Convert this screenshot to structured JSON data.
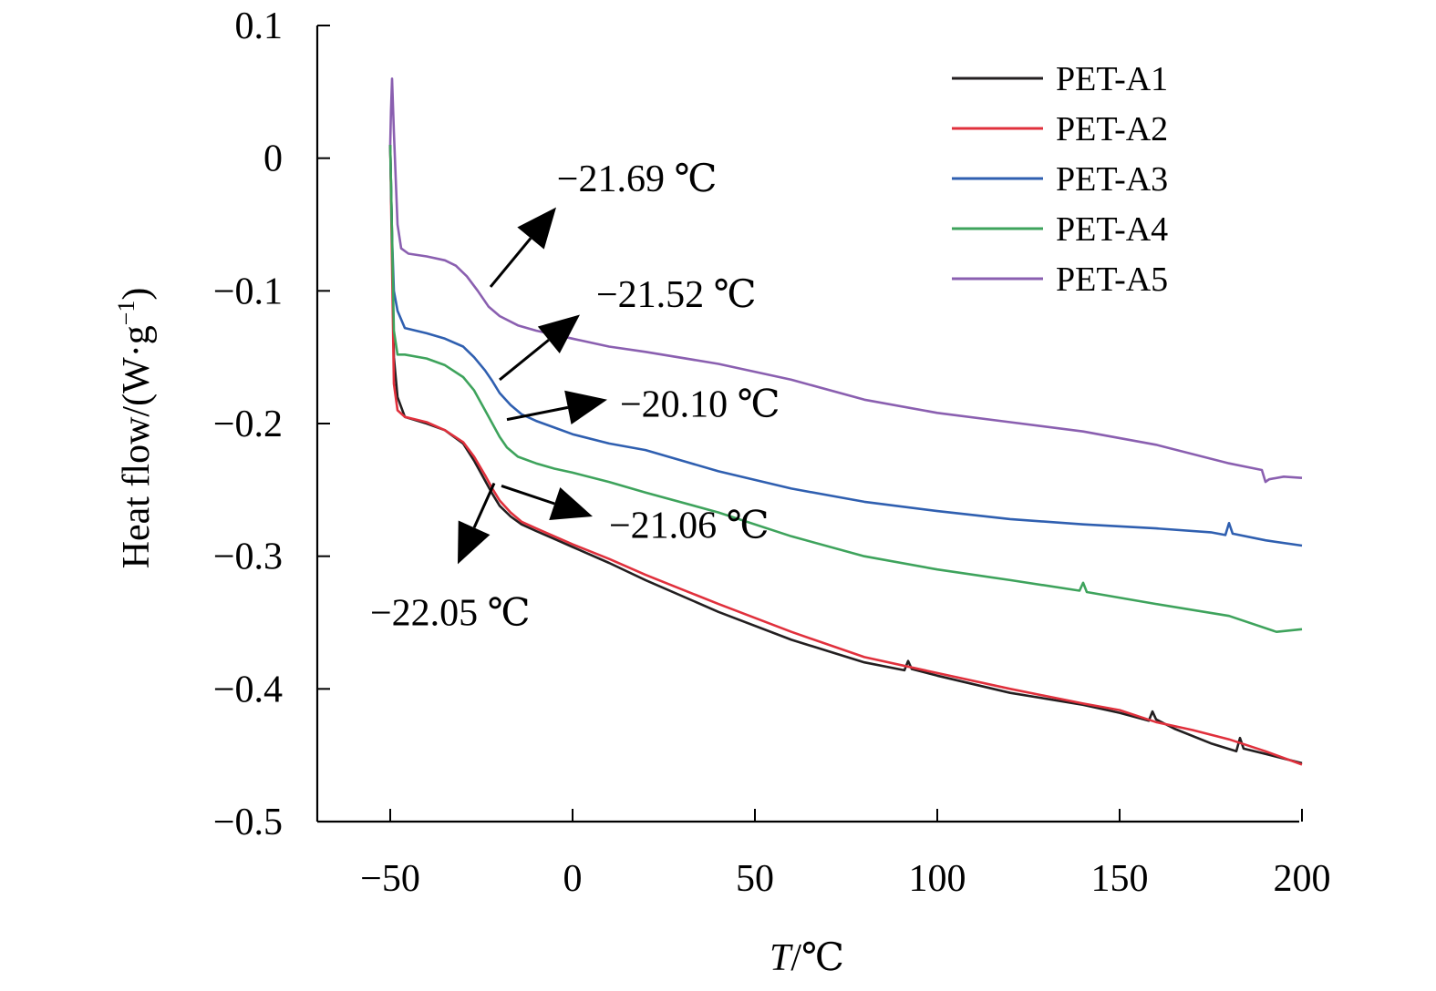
{
  "chart_data": {
    "type": "line",
    "title": "",
    "xlabel": {
      "italic": "T",
      "rest": "/℃"
    },
    "ylabel": {
      "main": "Heat flow/(W·g",
      "sup": "−1",
      "close": ")"
    },
    "xlim": [
      -70,
      200
    ],
    "ylim": [
      -0.5,
      0.1
    ],
    "xticks": [
      -50,
      0,
      50,
      100,
      150,
      200
    ],
    "xtick_labels": [
      "−50",
      "0",
      "50",
      "100",
      "150",
      "200"
    ],
    "yticks": [
      0.1,
      0,
      -0.1,
      -0.2,
      -0.3,
      -0.4,
      -0.5
    ],
    "ytick_labels": [
      "0.1",
      "0",
      "−0.1",
      "−0.2",
      "−0.3",
      "−0.4",
      "−0.5"
    ],
    "legend_position": "top-right",
    "series": [
      {
        "name": "PET-A1",
        "color": "#231f20",
        "x": [
          -50,
          -49.5,
          -49,
          -48,
          -46,
          -40,
          -35,
          -30,
          -27,
          -24,
          -22,
          -20,
          -17,
          -14,
          -10,
          -5,
          0,
          10,
          20,
          40,
          60,
          80,
          91,
          92,
          93,
          100,
          120,
          140,
          150,
          158,
          159,
          160,
          165,
          175,
          182,
          183,
          184,
          190,
          200
        ],
        "y": [
          0.01,
          -0.06,
          -0.15,
          -0.18,
          -0.195,
          -0.2,
          -0.205,
          -0.215,
          -0.228,
          -0.243,
          -0.253,
          -0.262,
          -0.27,
          -0.276,
          -0.281,
          -0.287,
          -0.293,
          -0.305,
          -0.318,
          -0.342,
          -0.363,
          -0.38,
          -0.386,
          -0.379,
          -0.385,
          -0.39,
          -0.403,
          -0.412,
          -0.418,
          -0.424,
          -0.417,
          -0.423,
          -0.43,
          -0.441,
          -0.447,
          -0.437,
          -0.445,
          -0.449,
          -0.456
        ]
      },
      {
        "name": "PET-A2",
        "color": "#e0303c",
        "x": [
          -50,
          -49.5,
          -49,
          -48,
          -46,
          -40,
          -35,
          -30,
          -27,
          -24,
          -22,
          -20,
          -17,
          -14,
          -10,
          -5,
          0,
          10,
          20,
          40,
          60,
          80,
          100,
          120,
          140,
          150,
          160,
          170,
          180,
          190,
          200
        ],
        "y": [
          0.01,
          -0.08,
          -0.17,
          -0.19,
          -0.195,
          -0.199,
          -0.205,
          -0.214,
          -0.225,
          -0.239,
          -0.249,
          -0.258,
          -0.267,
          -0.274,
          -0.279,
          -0.285,
          -0.291,
          -0.302,
          -0.314,
          -0.336,
          -0.357,
          -0.376,
          -0.388,
          -0.4,
          -0.411,
          -0.416,
          -0.425,
          -0.431,
          -0.438,
          -0.447,
          -0.457
        ]
      },
      {
        "name": "PET-A3",
        "color": "#2f5fb0",
        "x": [
          -50,
          -49.5,
          -49,
          -48,
          -46,
          -40,
          -35,
          -30,
          -27,
          -24,
          -22,
          -20,
          -17,
          -14,
          -10,
          -5,
          0,
          10,
          20,
          40,
          60,
          80,
          100,
          120,
          140,
          160,
          175,
          179,
          180,
          181,
          190,
          200
        ],
        "y": [
          0.01,
          -0.06,
          -0.1,
          -0.115,
          -0.128,
          -0.132,
          -0.136,
          -0.142,
          -0.15,
          -0.16,
          -0.168,
          -0.177,
          -0.186,
          -0.193,
          -0.198,
          -0.203,
          -0.208,
          -0.215,
          -0.22,
          -0.236,
          -0.249,
          -0.259,
          -0.266,
          -0.272,
          -0.276,
          -0.279,
          -0.282,
          -0.284,
          -0.275,
          -0.283,
          -0.288,
          -0.292
        ]
      },
      {
        "name": "PET-A4",
        "color": "#3ea35c",
        "x": [
          -50,
          -49.5,
          -49,
          -48,
          -46,
          -40,
          -35,
          -30,
          -27,
          -24,
          -22,
          -20,
          -18,
          -15,
          -10,
          -5,
          0,
          10,
          20,
          40,
          60,
          80,
          100,
          120,
          139,
          140,
          141,
          160,
          180,
          193,
          200
        ],
        "y": [
          0.01,
          -0.06,
          -0.13,
          -0.148,
          -0.148,
          -0.151,
          -0.156,
          -0.165,
          -0.175,
          -0.19,
          -0.2,
          -0.21,
          -0.218,
          -0.225,
          -0.23,
          -0.234,
          -0.237,
          -0.244,
          -0.252,
          -0.267,
          -0.285,
          -0.3,
          -0.31,
          -0.318,
          -0.326,
          -0.32,
          -0.327,
          -0.336,
          -0.345,
          -0.357,
          -0.355
        ]
      },
      {
        "name": "PET-A5",
        "color": "#8a5fb0",
        "x": [
          -50,
          -49.8,
          -49.5,
          -49,
          -48,
          -47,
          -45,
          -40,
          -35,
          -32,
          -29,
          -26,
          -23,
          -20,
          -15,
          -10,
          -5,
          0,
          10,
          20,
          40,
          60,
          80,
          100,
          120,
          140,
          160,
          180,
          189,
          190,
          191,
          195,
          200
        ],
        "y": [
          0.01,
          0.035,
          0.06,
          0.02,
          -0.05,
          -0.068,
          -0.072,
          -0.074,
          -0.077,
          -0.081,
          -0.089,
          -0.1,
          -0.112,
          -0.119,
          -0.126,
          -0.13,
          -0.133,
          -0.136,
          -0.142,
          -0.146,
          -0.155,
          -0.167,
          -0.182,
          -0.192,
          -0.199,
          -0.206,
          -0.216,
          -0.23,
          -0.235,
          -0.244,
          -0.242,
          -0.24,
          -0.241
        ]
      }
    ],
    "annotations": [
      {
        "text": "−21.69 ℃",
        "from": [
          -22.5,
          -0.097
        ],
        "to": [
          -4.5,
          -0.037
        ],
        "label_at": [
          -4.3,
          -0.025
        ]
      },
      {
        "text": "−21.52 ℃",
        "from": [
          -20,
          -0.167
        ],
        "to": [
          2,
          -0.118
        ],
        "label_at": [
          6.5,
          -0.112
        ]
      },
      {
        "text": "−20.10 ℃",
        "from": [
          -18,
          -0.197
        ],
        "to": [
          9.5,
          -0.182
        ],
        "label_at": [
          13,
          -0.195
        ]
      },
      {
        "text": "−21.06 ℃",
        "from": [
          -19.5,
          -0.247
        ],
        "to": [
          5.5,
          -0.27
        ],
        "label_at": [
          10,
          -0.286
        ]
      },
      {
        "text": "−22.05 ℃",
        "from": [
          -21.5,
          -0.245
        ],
        "to": [
          -31.5,
          -0.306
        ],
        "label_at": [
          -55.5,
          -0.352
        ]
      }
    ]
  }
}
